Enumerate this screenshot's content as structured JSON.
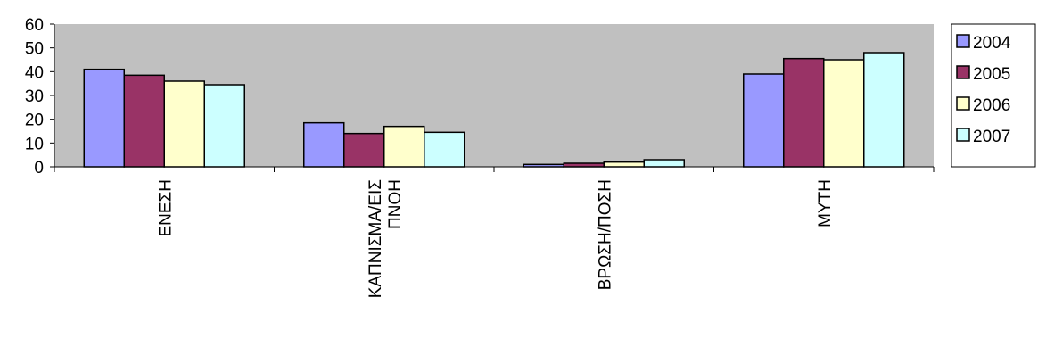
{
  "chart_data": {
    "type": "bar",
    "categories": [
      [
        "ΕΝΕΣΗ"
      ],
      [
        "ΚΑΠΝΙΣΜΑ/ΕΙΣ",
        "ΠΝΟΗ"
      ],
      [
        "ΒΡΩΣΗ/ΠΟΣΗ"
      ],
      [
        "ΜΥΤΗ"
      ]
    ],
    "series": [
      {
        "name": "2004",
        "color": "#9999ff",
        "values": [
          41,
          18.5,
          1,
          39
        ]
      },
      {
        "name": "2005",
        "color": "#993366",
        "values": [
          38.5,
          14,
          1.5,
          45.5
        ]
      },
      {
        "name": "2006",
        "color": "#ffffcc",
        "values": [
          36,
          17,
          2,
          45
        ]
      },
      {
        "name": "2007",
        "color": "#ccffff",
        "values": [
          34.5,
          14.5,
          3,
          48
        ]
      }
    ],
    "ylim": [
      0,
      60
    ],
    "yticks": [
      0,
      10,
      20,
      30,
      40,
      50,
      60
    ],
    "plot_background": "#c0c0c0",
    "grid": false,
    "legend_position": "right",
    "title": "",
    "xlabel": "",
    "ylabel": ""
  }
}
